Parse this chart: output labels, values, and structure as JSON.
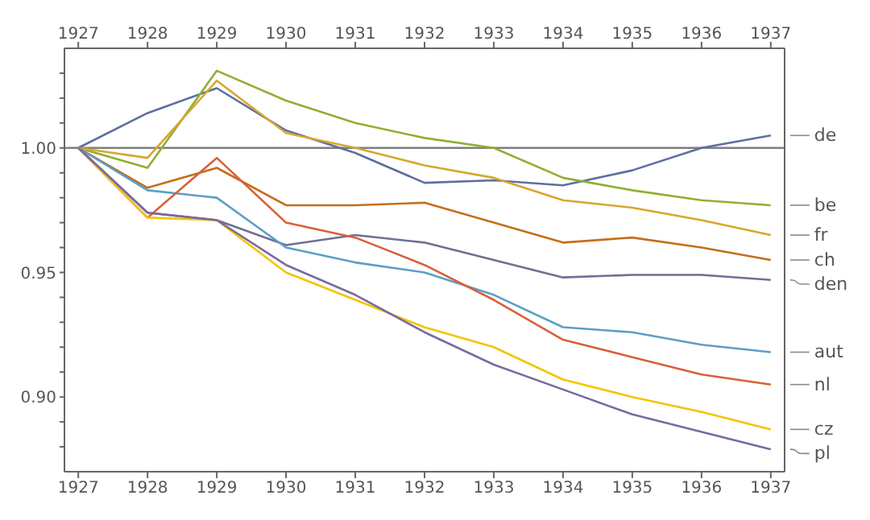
{
  "chart_data": {
    "type": "line",
    "x": [
      1927,
      1928,
      1929,
      1930,
      1931,
      1932,
      1933,
      1934,
      1935,
      1936,
      1937
    ],
    "xlim": [
      1926.8,
      1937.2
    ],
    "xticks": [
      1927,
      1928,
      1929,
      1930,
      1931,
      1932,
      1933,
      1934,
      1935,
      1936,
      1937
    ],
    "x2lim": [
      1926.8,
      1937.2
    ],
    "x2ticks": [
      1927,
      1928,
      1929,
      1930,
      1931,
      1932,
      1933,
      1934,
      1935,
      1936,
      1937
    ],
    "ylim": [
      0.87,
      1.04
    ],
    "yticks": [
      {
        "value": 0.88,
        "label": null
      },
      {
        "value": 0.89,
        "label": null
      },
      {
        "value": 0.9,
        "label": "0.90"
      },
      {
        "value": 0.91,
        "label": null
      },
      {
        "value": 0.92,
        "label": null
      },
      {
        "value": 0.93,
        "label": null
      },
      {
        "value": 0.94,
        "label": null
      },
      {
        "value": 0.95,
        "label": "0.95"
      },
      {
        "value": 0.96,
        "label": null
      },
      {
        "value": 0.97,
        "label": null
      },
      {
        "value": 0.98,
        "label": null
      },
      {
        "value": 0.99,
        "label": null
      },
      {
        "value": 1.0,
        "label": "1.00"
      },
      {
        "value": 1.01,
        "label": null
      },
      {
        "value": 1.02,
        "label": null
      },
      {
        "value": 1.03,
        "label": null
      }
    ],
    "ref_lines": [
      {
        "axis": "y",
        "value": 1.0,
        "color": "#7f7f7f"
      }
    ],
    "marker": "none",
    "line_style": "solid",
    "series": [
      {
        "name": "de",
        "color": "#5e6f9e",
        "values": [
          1.0,
          1.014,
          1.024,
          1.007,
          0.998,
          0.986,
          0.987,
          0.985,
          0.991,
          1.0,
          1.005
        ]
      },
      {
        "name": "be",
        "color": "#8fb032",
        "values": [
          1.0,
          0.992,
          1.031,
          1.019,
          1.01,
          1.004,
          1.0,
          0.988,
          0.983,
          0.979,
          0.977
        ]
      },
      {
        "name": "fr",
        "color": "#d9a62e",
        "values": [
          1.0,
          0.996,
          1.027,
          1.006,
          1.0,
          0.993,
          0.988,
          0.979,
          0.976,
          0.971,
          0.965
        ]
      },
      {
        "name": "ch",
        "color": "#c56e1a",
        "values": [
          1.0,
          0.984,
          0.992,
          0.977,
          0.977,
          0.978,
          0.97,
          0.962,
          0.964,
          0.96,
          0.955
        ]
      },
      {
        "name": "den",
        "color": "#6f6f95",
        "values": [
          1.0,
          0.974,
          0.971,
          0.961,
          0.965,
          0.962,
          0.955,
          0.948,
          0.949,
          0.949,
          0.947
        ]
      },
      {
        "name": "aut",
        "color": "#5d9ec7",
        "values": [
          1.0,
          0.983,
          0.98,
          0.96,
          0.954,
          0.95,
          0.941,
          0.928,
          0.926,
          0.921,
          0.918
        ]
      },
      {
        "name": "nl",
        "color": "#d9603b",
        "values": [
          1.0,
          0.972,
          0.996,
          0.97,
          0.964,
          0.953,
          0.939,
          0.923,
          0.916,
          0.909,
          0.905
        ]
      },
      {
        "name": "cz",
        "color": "#f2c500",
        "values": [
          1.0,
          0.972,
          0.971,
          0.95,
          0.939,
          0.928,
          0.92,
          0.907,
          0.9,
          0.894,
          0.887
        ]
      },
      {
        "name": "pl",
        "color": "#7a6aa0",
        "values": [
          1.0,
          0.974,
          0.971,
          0.953,
          0.941,
          0.926,
          0.913,
          0.903,
          0.893,
          0.886,
          0.879
        ]
      }
    ]
  }
}
